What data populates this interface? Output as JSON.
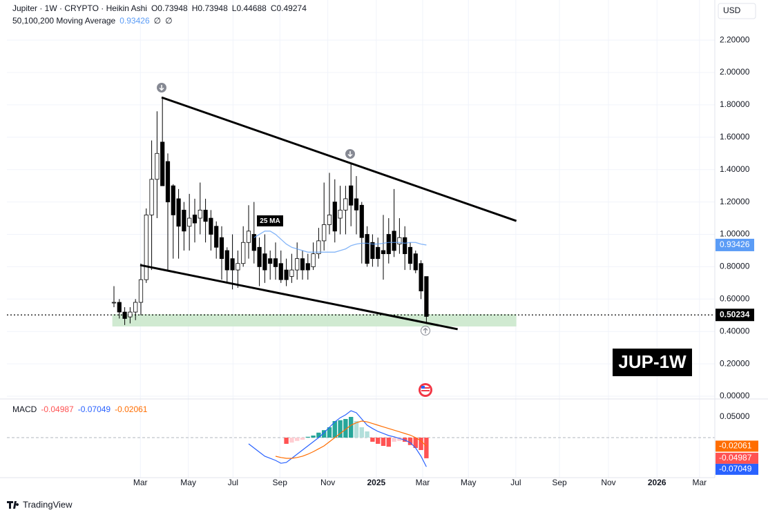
{
  "header": {
    "title": "Jupiter · 1W · CRYPTO · Heikin Ashi",
    "ohlc_labels": [
      "O",
      "H",
      "L",
      "C"
    ],
    "brand": "TradingView"
  },
  "chart_data": [
    {
      "type": "candlestick",
      "currency": "USD",
      "symbol_badge": "JUP-1W",
      "up_color": "#ffffff",
      "down_color": "#000000",
      "grid": true,
      "x": [
        0,
        1,
        2,
        3,
        4,
        5,
        6,
        7,
        8,
        9,
        10,
        11,
        12,
        13,
        14,
        15,
        16,
        17,
        18,
        19,
        20,
        21,
        22,
        23,
        24,
        25,
        26,
        27,
        28,
        29,
        30,
        31,
        32,
        33,
        34,
        35,
        36,
        37,
        38,
        39,
        40,
        41,
        42,
        43,
        44,
        45,
        46,
        47,
        48,
        49,
        50,
        51,
        52,
        53,
        54,
        55,
        56,
        57,
        58
      ],
      "open": [
        0.58,
        0.58,
        0.52,
        0.49,
        0.52,
        0.58,
        0.72,
        1.12,
        1.34,
        1.57,
        1.45,
        1.3,
        1.22,
        1.15,
        1.05,
        1.12,
        1.1,
        1.15,
        1.1,
        1.05,
        0.98,
        0.9,
        0.85,
        0.78,
        0.82,
        0.95,
        1.0,
        0.92,
        0.88,
        0.85,
        0.85,
        0.82,
        0.78,
        0.74,
        0.78,
        0.85,
        0.82,
        0.8,
        0.88,
        0.96,
        1.06,
        1.2,
        1.1,
        1.15,
        1.3,
        1.22,
        1.18,
        1.0,
        0.95,
        0.92,
        0.9,
        1.0,
        1.02,
        0.94,
        0.98,
        0.92,
        0.88,
        0.82,
        0.73948
      ],
      "high": [
        0.68,
        0.6,
        0.55,
        0.55,
        0.6,
        0.82,
        1.16,
        1.58,
        1.76,
        1.84,
        1.5,
        1.31,
        1.28,
        1.2,
        1.25,
        1.22,
        1.32,
        1.22,
        1.15,
        1.08,
        1.05,
        0.92,
        1.0,
        0.9,
        1.05,
        1.18,
        1.2,
        0.98,
        1.0,
        0.9,
        0.95,
        0.9,
        0.85,
        0.88,
        0.95,
        0.9,
        0.88,
        0.95,
        1.04,
        1.32,
        1.38,
        1.34,
        1.3,
        1.3,
        1.44,
        1.36,
        1.2,
        1.05,
        1.0,
        0.98,
        1.12,
        1.1,
        1.28,
        1.1,
        1.05,
        0.95,
        0.9,
        0.84,
        0.73948
      ],
      "low": [
        0.55,
        0.48,
        0.44,
        0.45,
        0.47,
        0.5,
        0.7,
        0.78,
        1.1,
        1.3,
        0.78,
        0.85,
        0.85,
        0.9,
        0.9,
        0.95,
        1.0,
        0.95,
        0.9,
        0.85,
        0.72,
        0.7,
        0.66,
        0.67,
        0.8,
        0.85,
        0.82,
        0.68,
        0.7,
        0.72,
        0.72,
        0.7,
        0.68,
        0.7,
        0.72,
        0.72,
        0.72,
        0.78,
        0.85,
        0.9,
        1.0,
        0.95,
        1.0,
        1.0,
        1.05,
        1.0,
        0.82,
        0.8,
        0.8,
        0.8,
        0.72,
        0.82,
        0.86,
        0.88,
        0.78,
        0.78,
        0.76,
        0.6,
        0.44688
      ],
      "close": [
        0.58,
        0.52,
        0.48,
        0.52,
        0.58,
        0.72,
        1.12,
        1.34,
        1.5,
        1.3,
        1.2,
        1.12,
        1.05,
        1.02,
        1.1,
        1.07,
        1.15,
        1.08,
        1.0,
        0.92,
        0.85,
        0.78,
        0.78,
        0.82,
        0.95,
        1.02,
        0.9,
        0.8,
        0.78,
        0.82,
        0.8,
        0.72,
        0.72,
        0.78,
        0.85,
        0.78,
        0.78,
        0.88,
        0.96,
        1.06,
        1.12,
        1.02,
        1.15,
        1.22,
        1.18,
        1.15,
        0.98,
        0.82,
        0.85,
        0.85,
        0.88,
        0.88,
        0.9,
        0.98,
        0.88,
        0.82,
        0.78,
        0.65,
        0.49274
      ],
      "moving_average": {
        "name": "50,100,200 Moving Average",
        "color": "#5b9cf6",
        "params": [
          "∅",
          "∅"
        ],
        "values": [
          null,
          null,
          null,
          null,
          null,
          null,
          null,
          null,
          null,
          null,
          null,
          null,
          null,
          null,
          null,
          null,
          null,
          null,
          null,
          null,
          null,
          null,
          null,
          null,
          null,
          null,
          0.98,
          1.0,
          1.02,
          1.02,
          1.0,
          0.97,
          0.94,
          0.92,
          0.91,
          0.9,
          0.89,
          0.89,
          0.89,
          0.89,
          0.89,
          0.89,
          0.9,
          0.91,
          0.93,
          0.94,
          0.945,
          0.945,
          0.94,
          0.94,
          0.945,
          0.95,
          0.95,
          0.95,
          0.945,
          0.95,
          0.95,
          0.94,
          0.93426
        ]
      },
      "last_price": 0.50234,
      "annotations": [
        "25 MA"
      ],
      "trendlines": [
        {
          "x": [
            8.85,
            74.7
          ],
          "y": [
            1.846,
            1.083
          ]
        },
        {
          "x": [
            4.87,
            63.8
          ],
          "y": [
            0.81,
            0.414
          ]
        }
      ],
      "support_zone": {
        "x": [
          -0.3,
          74.7
        ],
        "y": [
          0.431,
          0.507
        ],
        "color": "#c8e6c9"
      },
      "xlim": [
        -19.87,
        111.54
      ],
      "xticks": [
        {
          "value": 4.9,
          "label": "Mar"
        },
        {
          "value": 13.8,
          "label": "May"
        },
        {
          "value": 22.1,
          "label": "Jul"
        },
        {
          "value": 30.8,
          "label": "Sep"
        },
        {
          "value": 39.7,
          "label": "Nov"
        },
        {
          "value": 48.7,
          "label": "2025"
        },
        {
          "value": 57.3,
          "label": "Mar"
        },
        {
          "value": 65.8,
          "label": "May"
        },
        {
          "value": 74.6,
          "label": "Jul"
        },
        {
          "value": 82.7,
          "label": "Sep"
        },
        {
          "value": 91.8,
          "label": "Nov"
        },
        {
          "value": 100.8,
          "label": "2026"
        },
        {
          "value": 108.7,
          "label": "Mar"
        }
      ],
      "ylim": [
        -0.017,
        2.435
      ],
      "yticks": [
        {
          "value": 0,
          "label": "0.00000"
        },
        {
          "value": 0.2,
          "label": "0.20000"
        },
        {
          "value": 0.4,
          "label": "0.40000"
        },
        {
          "value": 0.6,
          "label": "0.60000"
        },
        {
          "value": 0.8,
          "label": "0.80000"
        },
        {
          "value": 1,
          "label": "1.00000"
        },
        {
          "value": 1.2,
          "label": "1.20000"
        },
        {
          "value": 1.4,
          "label": "1.40000"
        },
        {
          "value": 1.6,
          "label": "1.60000"
        },
        {
          "value": 1.8,
          "label": "1.80000"
        },
        {
          "value": 2,
          "label": "2.00000"
        },
        {
          "value": 2.2,
          "label": "2.20000"
        }
      ]
    },
    {
      "type": "macd",
      "name": "MACD",
      "hist_colors": {
        "pos_up": "#26a69a",
        "pos_down": "#b2dfdb",
        "neg_down": "#ff5252",
        "neg_up": "#ffcdd2"
      },
      "series": [
        {
          "name": "histogram",
          "color": "#ff5252",
          "values": [
            null,
            null,
            null,
            null,
            null,
            null,
            null,
            null,
            null,
            null,
            null,
            null,
            null,
            null,
            null,
            null,
            null,
            null,
            null,
            null,
            null,
            null,
            null,
            null,
            null,
            null,
            null,
            null,
            null,
            null,
            null,
            null,
            -0.015,
            -0.012,
            -0.008,
            -0.005,
            0.002,
            0.005,
            0.012,
            0.018,
            0.025,
            0.04,
            0.042,
            0.045,
            0.05,
            0.04,
            0.025,
            0.015,
            -0.01,
            -0.015,
            -0.02,
            -0.022,
            -0.01,
            -0.008,
            -0.01,
            -0.018,
            -0.025,
            -0.03,
            -0.04987
          ]
        },
        {
          "name": "macd",
          "color": "#2962ff",
          "values": [
            null,
            null,
            null,
            null,
            null,
            null,
            null,
            null,
            null,
            null,
            null,
            null,
            null,
            null,
            null,
            null,
            null,
            null,
            null,
            null,
            null,
            null,
            null,
            null,
            null,
            -0.015,
            -0.025,
            -0.035,
            -0.045,
            -0.05,
            -0.055,
            -0.062,
            -0.06,
            -0.05,
            -0.04,
            -0.03,
            -0.02,
            -0.01,
            0.0,
            0.012,
            0.025,
            0.038,
            0.048,
            0.055,
            0.065,
            0.06,
            0.045,
            0.03,
            0.022,
            0.015,
            0.01,
            0.005,
            0.002,
            -0.002,
            -0.006,
            -0.012,
            -0.025,
            -0.045,
            -0.07049
          ]
        },
        {
          "name": "signal",
          "color": "#ff6d00",
          "values": [
            null,
            null,
            null,
            null,
            null,
            null,
            null,
            null,
            null,
            null,
            null,
            null,
            null,
            null,
            null,
            null,
            null,
            null,
            null,
            null,
            null,
            null,
            null,
            null,
            null,
            null,
            null,
            null,
            null,
            null,
            -0.045,
            -0.048,
            -0.05,
            -0.05,
            -0.048,
            -0.045,
            -0.04,
            -0.034,
            -0.027,
            -0.02,
            -0.01,
            0.0,
            0.01,
            0.02,
            0.03,
            0.036,
            0.04,
            0.038,
            0.034,
            0.03,
            0.026,
            0.022,
            0.018,
            0.014,
            0.01,
            0.006,
            0.0,
            -0.008,
            -0.02061
          ]
        }
      ],
      "ylim": [
        -0.0967,
        0.09
      ],
      "yticks": [
        {
          "value": 0.05,
          "label": "0.05000"
        }
      ]
    }
  ]
}
